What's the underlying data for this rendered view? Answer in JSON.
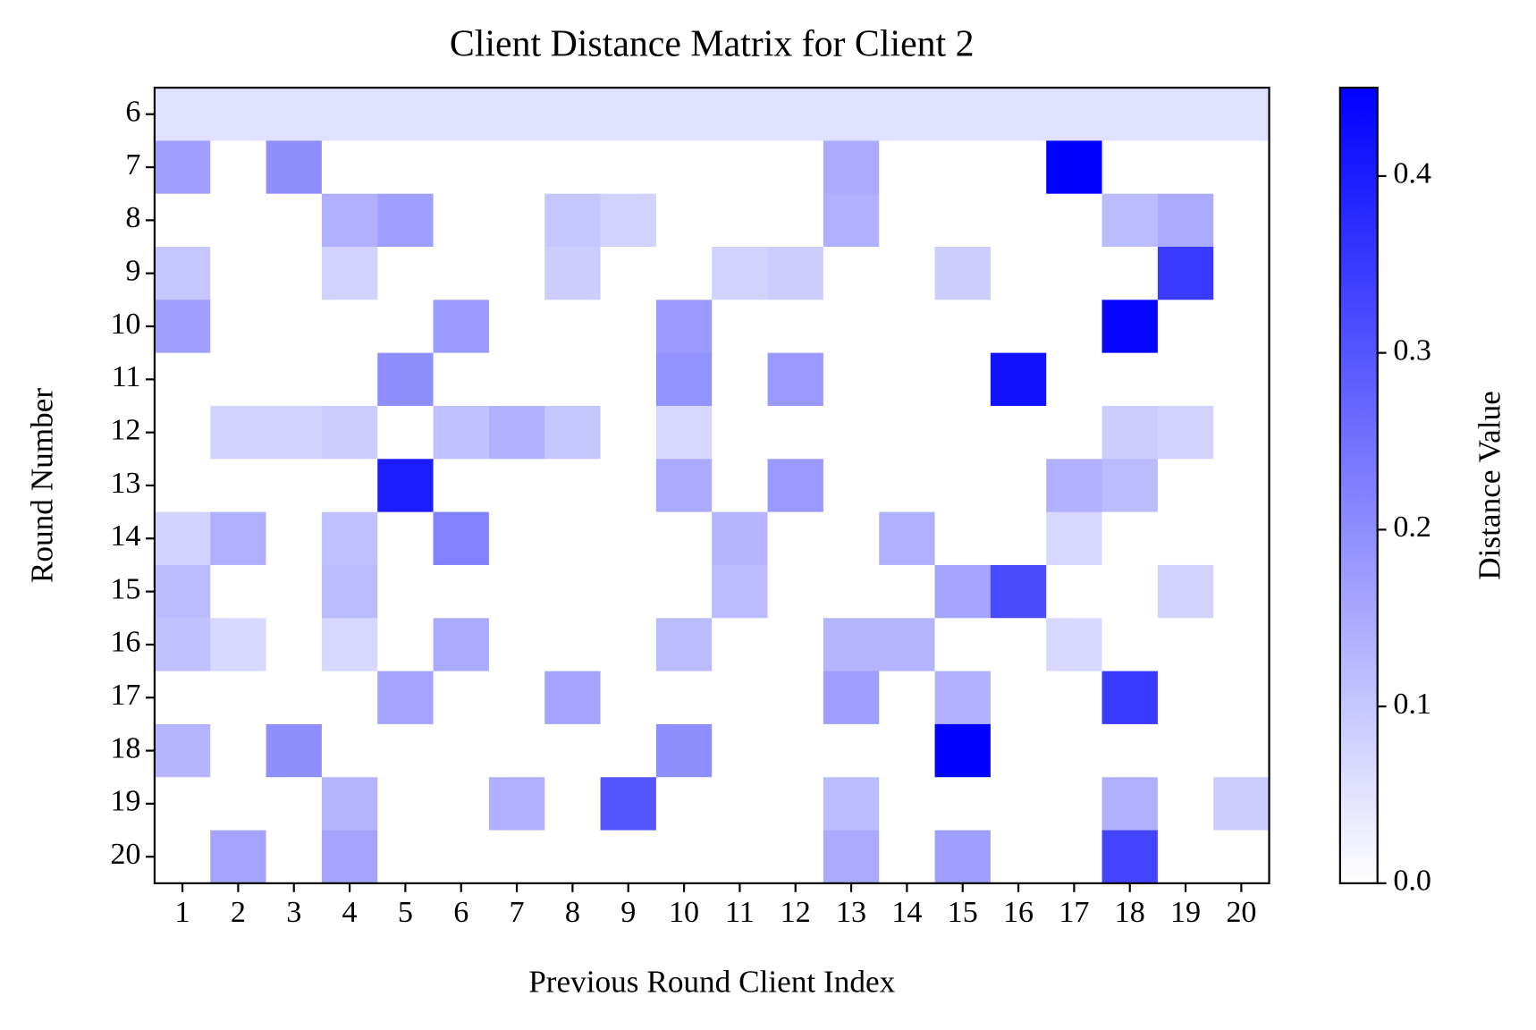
{
  "chart_data": {
    "type": "heatmap",
    "title": "Client Distance Matrix for Client 2",
    "xlabel": "Previous Round Client Index",
    "ylabel": "Round Number",
    "x_categories": [
      1,
      2,
      3,
      4,
      5,
      6,
      7,
      8,
      9,
      10,
      11,
      12,
      13,
      14,
      15,
      16,
      17,
      18,
      19,
      20
    ],
    "y_categories": [
      6,
      7,
      8,
      9,
      10,
      11,
      12,
      13,
      14,
      15,
      16,
      17,
      18,
      19,
      20
    ],
    "values": [
      [
        0.055,
        0.055,
        0.055,
        0.055,
        0.055,
        0.055,
        0.055,
        0.055,
        0.055,
        0.055,
        0.055,
        0.055,
        0.055,
        0.055,
        0.055,
        0.055,
        0.055,
        0.055,
        0.055,
        0.055
      ],
      [
        0.17,
        0,
        0.2,
        0,
        0,
        0,
        0,
        0,
        0,
        0,
        0,
        0,
        0.15,
        0,
        0,
        0,
        0.45,
        0,
        0,
        0
      ],
      [
        0,
        0,
        0,
        0.14,
        0.17,
        0,
        0,
        0.1,
        0.08,
        0,
        0,
        0,
        0.14,
        0,
        0,
        0,
        0,
        0.12,
        0.15,
        0
      ],
      [
        0.1,
        0,
        0,
        0.08,
        0,
        0,
        0,
        0.09,
        0,
        0,
        0.08,
        0.09,
        0,
        0,
        0.09,
        0,
        0,
        0,
        0.35,
        0
      ],
      [
        0.17,
        0,
        0,
        0,
        0,
        0.18,
        0,
        0,
        0,
        0.18,
        0,
        0,
        0,
        0,
        0,
        0,
        0,
        0.44,
        0,
        0
      ],
      [
        0,
        0,
        0,
        0,
        0.2,
        0,
        0,
        0,
        0,
        0.19,
        0,
        0.18,
        0,
        0,
        0,
        0.42,
        0,
        0,
        0,
        0
      ],
      [
        0,
        0.08,
        0.08,
        0.09,
        0,
        0.11,
        0.14,
        0.1,
        0,
        0.07,
        0,
        0,
        0,
        0,
        0,
        0,
        0,
        0.09,
        0.08,
        0
      ],
      [
        0,
        0,
        0,
        0,
        0.4,
        0,
        0,
        0,
        0,
        0.15,
        0,
        0.18,
        0,
        0,
        0,
        0,
        0.14,
        0.12,
        0,
        0
      ],
      [
        0.08,
        0.14,
        0,
        0.11,
        0,
        0.22,
        0,
        0,
        0,
        0,
        0.13,
        0,
        0,
        0.14,
        0,
        0,
        0.07,
        0,
        0,
        0
      ],
      [
        0.12,
        0,
        0,
        0.12,
        0,
        0,
        0,
        0,
        0,
        0,
        0.12,
        0,
        0,
        0,
        0.16,
        0.32,
        0,
        0,
        0.08,
        0
      ],
      [
        0.11,
        0.07,
        0,
        0.07,
        0,
        0.15,
        0,
        0,
        0,
        0.12,
        0,
        0,
        0.13,
        0.13,
        0,
        0,
        0.07,
        0,
        0,
        0
      ],
      [
        0,
        0,
        0,
        0,
        0.16,
        0,
        0,
        0.16,
        0,
        0,
        0,
        0,
        0.17,
        0,
        0.14,
        0,
        0,
        0.35,
        0,
        0
      ],
      [
        0.13,
        0,
        0.2,
        0,
        0,
        0,
        0,
        0,
        0,
        0.2,
        0,
        0,
        0,
        0,
        0.45,
        0,
        0,
        0,
        0,
        0
      ],
      [
        0,
        0,
        0,
        0.13,
        0,
        0,
        0.14,
        0,
        0.3,
        0,
        0,
        0,
        0.12,
        0,
        0,
        0,
        0,
        0.14,
        0,
        0.09
      ],
      [
        0,
        0.16,
        0,
        0.16,
        0,
        0,
        0,
        0,
        0,
        0,
        0,
        0,
        0.15,
        0,
        0.17,
        0,
        0,
        0.33,
        0,
        0
      ]
    ],
    "cmap": [
      "#ffffff",
      "#0000ff"
    ],
    "colorbar": {
      "label": "Distance Value",
      "lim": [
        0,
        0.45
      ],
      "ticks": [
        {
          "value": 0,
          "label": "0.0"
        },
        0.1,
        0.2,
        0.3,
        0.4
      ]
    }
  }
}
